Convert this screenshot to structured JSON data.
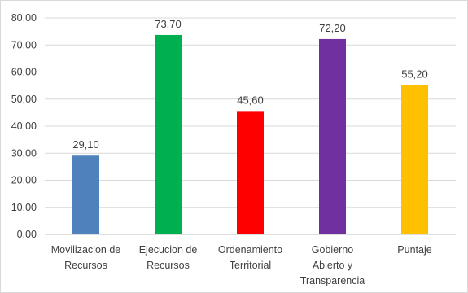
{
  "chart_data": {
    "type": "bar",
    "categories": [
      [
        "Movilizacion de",
        "Recursos"
      ],
      [
        "Ejecucion de",
        "Recursos"
      ],
      [
        "Ordenamiento",
        "Territorial"
      ],
      [
        "Gobierno",
        "Abierto y",
        "Transparencia"
      ],
      [
        "Puntaje"
      ]
    ],
    "values": [
      29.1,
      73.7,
      45.6,
      72.2,
      55.2
    ],
    "data_labels": [
      "29,10",
      "73,70",
      "45,60",
      "72,20",
      "55,20"
    ],
    "colors": [
      "#4f81bd",
      "#00b050",
      "#ff0000",
      "#7030a0",
      "#ffc000"
    ],
    "ylim": [
      0,
      80
    ],
    "yticks": [
      "0,00",
      "10,00",
      "20,00",
      "30,00",
      "40,00",
      "50,00",
      "60,00",
      "70,00",
      "80,00"
    ],
    "grid": true,
    "title": "",
    "xlabel": "",
    "ylabel": ""
  }
}
